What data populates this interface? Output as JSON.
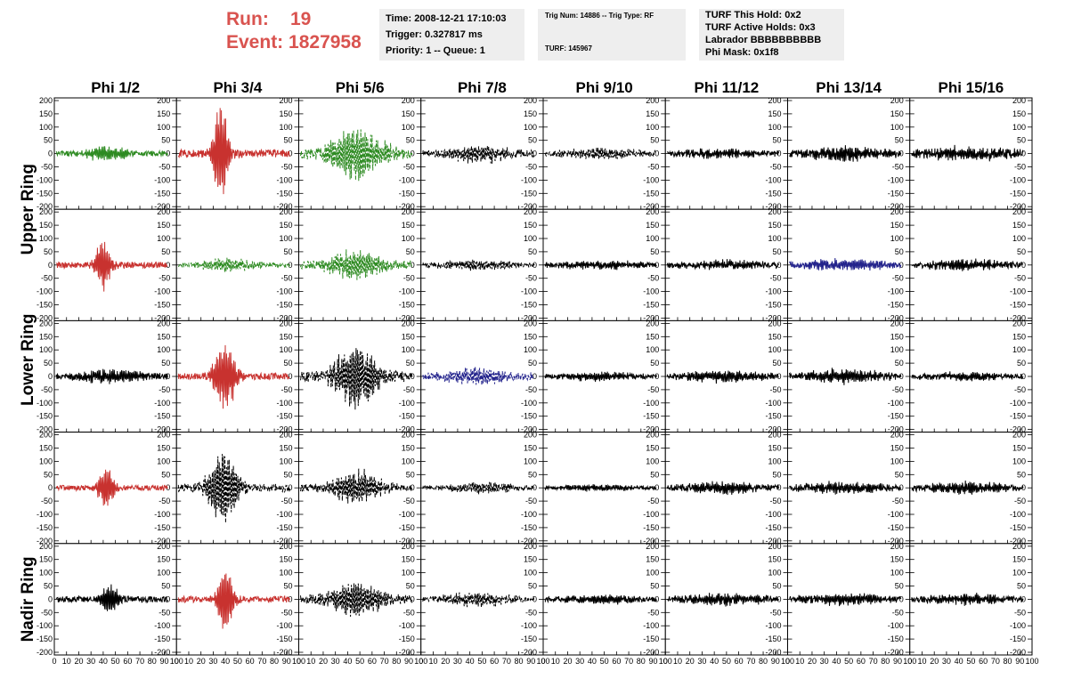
{
  "header": {
    "run_label": "Run:",
    "run_value": "19",
    "event_label": "Event:",
    "event_value": "1827958",
    "time": "Time: 2008-12-21 17:10:03",
    "trigger": "Trigger: 0.327817 ms",
    "priority": "Priority: 1 -- Queue: 1",
    "trig_num": "Trig Num: 14886 -- Trig Type: RF",
    "turf": "TURF: 145967",
    "turf_hold": "TURF This Hold: 0x2",
    "turf_active": "TURF Active Holds: 0x3",
    "labrador": "Labrador BBBBBBBBBB",
    "phi_mask": "Phi Mask: 0x1f8"
  },
  "colors": {
    "red": "#c8322f",
    "green": "#2e8b22",
    "blue": "#23238c",
    "black": "#000000",
    "header_text": "#d9534f",
    "box_bg": "#eeeeee"
  },
  "chart_data": {
    "type": "line",
    "columns": [
      "Phi 1/2",
      "Phi 3/4",
      "Phi 5/6",
      "Phi 7/8",
      "Phi 9/10",
      "Phi 11/12",
      "Phi 13/14",
      "Phi 15/16"
    ],
    "ring_labels": [
      "Upper Ring",
      "Lower Ring",
      "Nadir Ring"
    ],
    "xlim": [
      0,
      100
    ],
    "ylim": [
      -200,
      200
    ],
    "y_ticks": [
      -200,
      -150,
      -100,
      -50,
      0,
      50,
      100,
      150,
      200
    ],
    "x_ticks": [
      0,
      10,
      20,
      30,
      40,
      50,
      60,
      70,
      80,
      90,
      100
    ],
    "grid": false,
    "panels": [
      [
        {
          "color": "green",
          "dashed": false,
          "amp": 30,
          "center": 45,
          "width": 18,
          "noise": 10
        },
        {
          "color": "red",
          "dashed": false,
          "amp": 200,
          "center": 38,
          "width": 7,
          "noise": 15
        },
        {
          "color": "green",
          "dashed": true,
          "amp": 100,
          "center": 50,
          "width": 25,
          "noise": 20
        },
        {
          "color": "black",
          "dashed": true,
          "amp": 35,
          "center": 50,
          "width": 30,
          "noise": 12
        },
        {
          "color": "black",
          "dashed": true,
          "amp": 20,
          "center": 50,
          "width": 40,
          "noise": 8
        },
        {
          "color": "black",
          "dashed": false,
          "amp": 15,
          "center": 50,
          "width": 40,
          "noise": 10
        },
        {
          "color": "black",
          "dashed": false,
          "amp": 25,
          "center": 50,
          "width": 40,
          "noise": 12
        },
        {
          "color": "black",
          "dashed": false,
          "amp": 25,
          "center": 50,
          "width": 40,
          "noise": 12
        }
      ],
      [
        {
          "color": "red",
          "dashed": false,
          "amp": 100,
          "center": 42,
          "width": 8,
          "noise": 12
        },
        {
          "color": "green",
          "dashed": true,
          "amp": 25,
          "center": 45,
          "width": 25,
          "noise": 8
        },
        {
          "color": "green",
          "dashed": true,
          "amp": 60,
          "center": 50,
          "width": 25,
          "noise": 15
        },
        {
          "color": "black",
          "dashed": true,
          "amp": 20,
          "center": 50,
          "width": 35,
          "noise": 8
        },
        {
          "color": "black",
          "dashed": false,
          "amp": 15,
          "center": 50,
          "width": 40,
          "noise": 8
        },
        {
          "color": "black",
          "dashed": false,
          "amp": 15,
          "center": 50,
          "width": 40,
          "noise": 10
        },
        {
          "color": "blue",
          "dashed": false,
          "amp": 20,
          "center": 50,
          "width": 40,
          "noise": 10
        },
        {
          "color": "black",
          "dashed": false,
          "amp": 20,
          "center": 50,
          "width": 40,
          "noise": 10
        }
      ],
      [
        {
          "color": "black",
          "dashed": false,
          "amp": 25,
          "center": 50,
          "width": 35,
          "noise": 10
        },
        {
          "color": "red",
          "dashed": false,
          "amp": 140,
          "center": 42,
          "width": 10,
          "noise": 12
        },
        {
          "color": "black",
          "dashed": true,
          "amp": 130,
          "center": 50,
          "width": 20,
          "noise": 20
        },
        {
          "color": "blue",
          "dashed": true,
          "amp": 30,
          "center": 50,
          "width": 35,
          "noise": 12
        },
        {
          "color": "black",
          "dashed": false,
          "amp": 15,
          "center": 50,
          "width": 40,
          "noise": 8
        },
        {
          "color": "black",
          "dashed": false,
          "amp": 20,
          "center": 50,
          "width": 40,
          "noise": 10
        },
        {
          "color": "black",
          "dashed": false,
          "amp": 25,
          "center": 50,
          "width": 40,
          "noise": 10
        },
        {
          "color": "black",
          "dashed": false,
          "amp": 15,
          "center": 50,
          "width": 40,
          "noise": 8
        }
      ],
      [
        {
          "color": "red",
          "dashed": false,
          "amp": 80,
          "center": 45,
          "width": 8,
          "noise": 10
        },
        {
          "color": "black",
          "dashed": true,
          "amp": 150,
          "center": 40,
          "width": 14,
          "noise": 15
        },
        {
          "color": "black",
          "dashed": true,
          "amp": 70,
          "center": 50,
          "width": 22,
          "noise": 15
        },
        {
          "color": "black",
          "dashed": true,
          "amp": 20,
          "center": 55,
          "width": 30,
          "noise": 8
        },
        {
          "color": "black",
          "dashed": false,
          "amp": 10,
          "center": 50,
          "width": 40,
          "noise": 6
        },
        {
          "color": "black",
          "dashed": false,
          "amp": 20,
          "center": 50,
          "width": 40,
          "noise": 10
        },
        {
          "color": "black",
          "dashed": false,
          "amp": 20,
          "center": 50,
          "width": 40,
          "noise": 10
        },
        {
          "color": "black",
          "dashed": false,
          "amp": 20,
          "center": 50,
          "width": 40,
          "noise": 10
        }
      ],
      [
        {
          "color": "black",
          "dashed": false,
          "amp": 60,
          "center": 48,
          "width": 8,
          "noise": 12
        },
        {
          "color": "red",
          "dashed": false,
          "amp": 150,
          "center": 42,
          "width": 7,
          "noise": 12
        },
        {
          "color": "black",
          "dashed": true,
          "amp": 70,
          "center": 50,
          "width": 25,
          "noise": 15
        },
        {
          "color": "black",
          "dashed": true,
          "amp": 25,
          "center": 50,
          "width": 35,
          "noise": 10
        },
        {
          "color": "black",
          "dashed": false,
          "amp": 15,
          "center": 50,
          "width": 40,
          "noise": 8
        },
        {
          "color": "black",
          "dashed": false,
          "amp": 20,
          "center": 50,
          "width": 40,
          "noise": 10
        },
        {
          "color": "black",
          "dashed": false,
          "amp": 20,
          "center": 50,
          "width": 40,
          "noise": 10
        },
        {
          "color": "black",
          "dashed": false,
          "amp": 20,
          "center": 50,
          "width": 40,
          "noise": 10
        }
      ]
    ]
  }
}
